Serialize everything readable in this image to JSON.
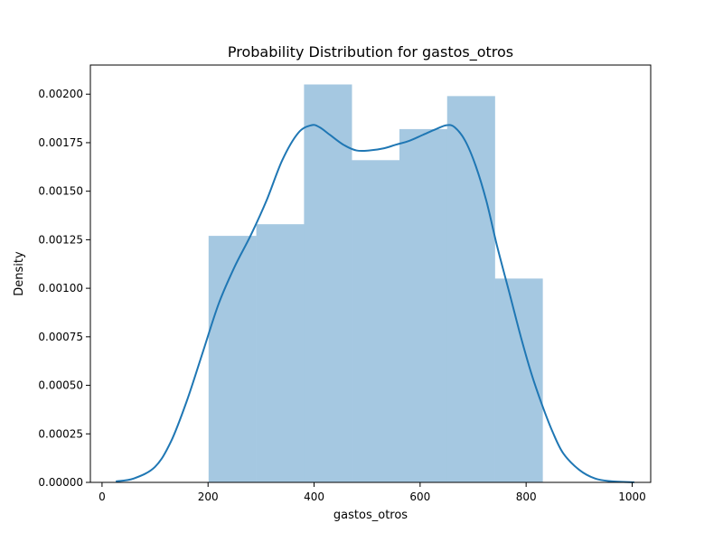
{
  "chart_data": {
    "type": "bar",
    "title": "Probability Distribution for gastos_otros",
    "xlabel": "gastos_otros",
    "ylabel": "Density",
    "xlim": [
      -22,
      1035
    ],
    "ylim": [
      0,
      0.00215
    ],
    "x_ticks": [
      0,
      200,
      400,
      600,
      800,
      1000
    ],
    "y_ticks": [
      0.0,
      0.00025,
      0.0005,
      0.00075,
      0.001,
      0.00125,
      0.0015,
      0.00175,
      0.002
    ],
    "x_tick_labels": [
      "0",
      "200",
      "400",
      "600",
      "800",
      "1000"
    ],
    "y_tick_labels": [
      "0.00000",
      "0.00025",
      "0.00050",
      "0.00075",
      "0.00100",
      "0.00125",
      "0.00150",
      "0.00175",
      "0.00200"
    ],
    "grid": false,
    "histogram": {
      "bin_edges": [
        201,
        291,
        381,
        471,
        561,
        651,
        741,
        831
      ],
      "densities": [
        0.00127,
        0.00133,
        0.00205,
        0.00166,
        0.00182,
        0.00199,
        0.00105
      ],
      "color": "#a5c8e1"
    },
    "kde": {
      "color": "#1f77b4",
      "x": [
        26,
        60,
        100,
        130,
        160,
        190,
        220,
        250,
        280,
        310,
        340,
        370,
        395,
        410,
        430,
        455,
        480,
        505,
        530,
        555,
        580,
        605,
        630,
        650,
        665,
        685,
        705,
        725,
        745,
        770,
        790,
        810,
        830,
        850,
        870,
        900,
        930,
        960,
        1004
      ],
      "y": [
        5e-06,
        2e-05,
        8e-05,
        0.00021,
        0.00042,
        0.00067,
        0.00092,
        0.00111,
        0.00127,
        0.00145,
        0.00166,
        0.0018,
        0.00184,
        0.00183,
        0.00179,
        0.00174,
        0.00171,
        0.00171,
        0.00172,
        0.00174,
        0.00176,
        0.00179,
        0.00182,
        0.00184,
        0.00183,
        0.00176,
        0.00163,
        0.00145,
        0.00122,
        0.00096,
        0.00075,
        0.00056,
        0.0004,
        0.00026,
        0.00015,
        6.5e-05,
        2e-05,
        6e-06,
        5e-07
      ]
    }
  }
}
